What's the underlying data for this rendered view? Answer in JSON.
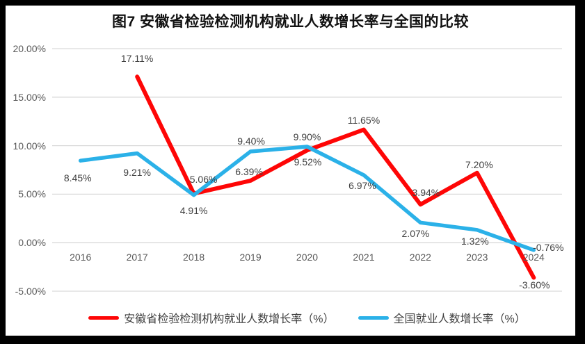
{
  "chart_data": {
    "type": "line",
    "title": "图7  安徽省检验检测机构就业人数增长率与全国的比较",
    "categories": [
      "2016",
      "2017",
      "2018",
      "2019",
      "2020",
      "2021",
      "2022",
      "2023",
      "2024"
    ],
    "ylim": [
      -5,
      20
    ],
    "grid": "horizontal",
    "legend_position": "bottom",
    "y_ticks": [
      {
        "value": 20,
        "label": "20.00%"
      },
      {
        "value": 15,
        "label": "15.00%"
      },
      {
        "value": 10,
        "label": "10.00%"
      },
      {
        "value": 5,
        "label": "5.00%"
      },
      {
        "value": 0,
        "label": "0.00%"
      },
      {
        "value": -5,
        "label": "-5.00%"
      }
    ],
    "series": [
      {
        "name": "安徽省检验检测机构就业人数增长率（%）",
        "color": "#fe0606",
        "values": [
          null,
          17.11,
          5.06,
          6.39,
          9.52,
          11.65,
          3.94,
          7.2,
          -3.6
        ],
        "labels": [
          "",
          "17.11%",
          "5.06%",
          "6.39%",
          "9.52%",
          "11.65%",
          "3.94%",
          "7.20%",
          "-3.60%"
        ],
        "label_offsets": [
          [
            0,
            0
          ],
          [
            0,
            -26
          ],
          [
            14,
            -21
          ],
          [
            -2,
            -13
          ],
          [
            1,
            17
          ],
          [
            0,
            -14
          ],
          [
            8,
            -17
          ],
          [
            3,
            -12
          ],
          [
            1,
            11
          ]
        ]
      },
      {
        "name": "全国就业人数增长率（%）",
        "color": "#2bb1e8",
        "values": [
          8.45,
          9.21,
          4.91,
          9.4,
          9.9,
          6.97,
          2.07,
          1.32,
          -0.76
        ],
        "labels": [
          "8.45%",
          "9.21%",
          "4.91%",
          "9.40%",
          "9.90%",
          "6.97%",
          "2.07%",
          "1.32%",
          "-0.76%"
        ],
        "label_offsets": [
          [
            -4,
            25
          ],
          [
            0,
            27
          ],
          [
            0,
            22
          ],
          [
            1,
            -15
          ],
          [
            0,
            -14
          ],
          [
            -2,
            15
          ],
          [
            -7,
            16
          ],
          [
            -3,
            16
          ],
          [
            21,
            -4
          ]
        ]
      }
    ],
    "colors": {
      "grid_line": "#d9d9d9",
      "axis_text": "#595959",
      "data_label_text": "#404040",
      "title_text": "#111111",
      "plot_background": "#ffffff",
      "frame_border": "#000000"
    }
  }
}
